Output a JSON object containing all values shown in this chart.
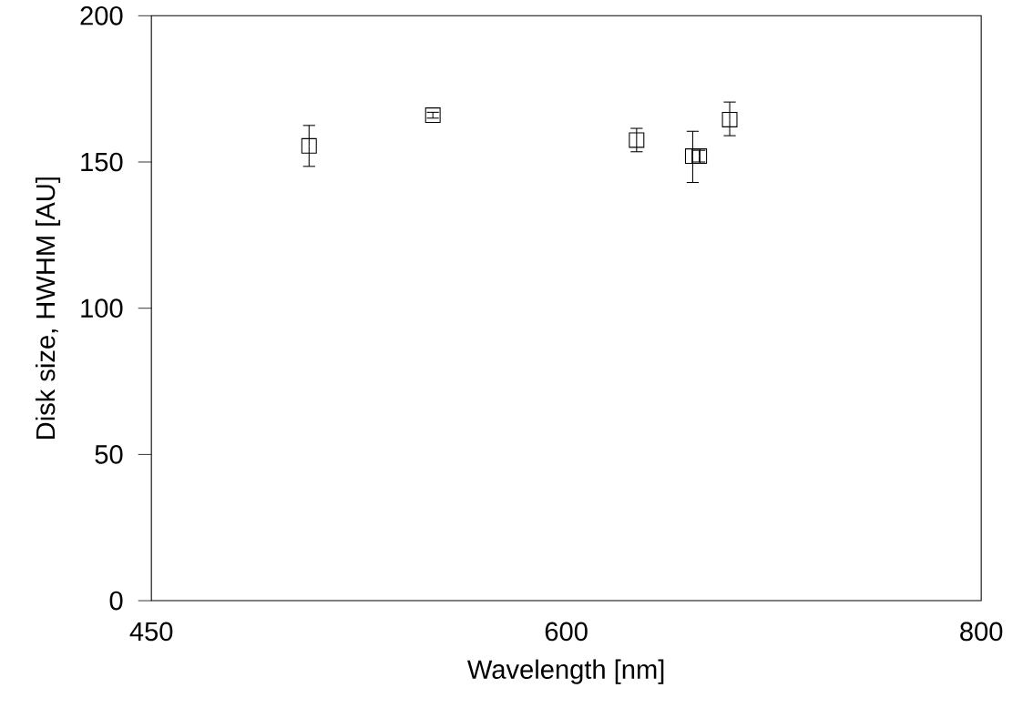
{
  "chart_data": {
    "type": "scatter",
    "xlabel": "Wavelength [nm]",
    "ylabel": "Disk size, HWHM [AU]",
    "x": [
      502,
      547,
      630,
      655,
      658,
      672
    ],
    "values": [
      155.5,
      166,
      157.5,
      152,
      152,
      164.5
    ],
    "errors": [
      [
        148.5,
        162.5
      ],
      [
        165,
        167
      ],
      [
        153.5,
        161.5
      ],
      [
        143,
        160.5
      ],
      [
        150,
        154
      ],
      [
        159,
        170.5
      ]
    ],
    "color": "#000000",
    "marker": "square",
    "log": "x",
    "xlim": [
      450,
      800
    ],
    "xticks": [
      450,
      600,
      800
    ],
    "ylim": [
      0,
      200
    ],
    "yticks": [
      0,
      50,
      100,
      150,
      200
    ]
  }
}
